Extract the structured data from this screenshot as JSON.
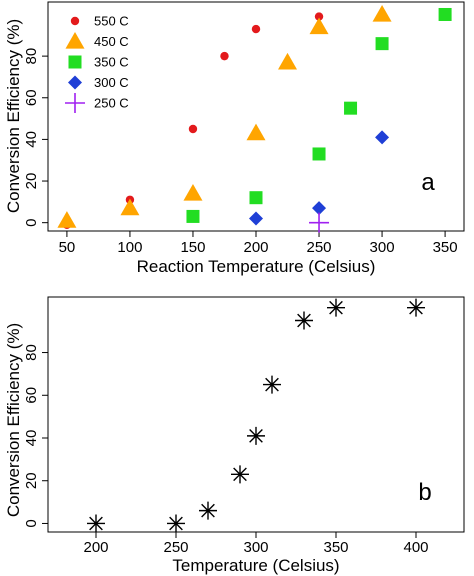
{
  "chart_data": [
    {
      "type": "scatter",
      "panel_label": "a",
      "xlabel": "Reaction Temperature (Celsius)",
      "ylabel": "Conversion Efficiency (%)",
      "xlim": [
        35,
        365
      ],
      "ylim": [
        -4,
        106
      ],
      "xticks": [
        50,
        100,
        150,
        200,
        250,
        300,
        350
      ],
      "yticks": [
        0,
        20,
        40,
        60,
        80
      ],
      "legend_position": "top-left",
      "series": [
        {
          "name": "550 C",
          "marker": "circle",
          "color": "#e31a1c",
          "x": [
            50,
            100,
            150,
            175,
            200,
            250
          ],
          "y": [
            -1,
            11,
            45,
            80,
            93,
            99
          ]
        },
        {
          "name": "450 C",
          "marker": "triangle",
          "color": "#ffa500",
          "x": [
            50,
            100,
            150,
            200,
            225,
            250,
            300
          ],
          "y": [
            1,
            7,
            14,
            43,
            77,
            94,
            100
          ]
        },
        {
          "name": "350 C",
          "marker": "square",
          "color": "#22dd22",
          "x": [
            150,
            200,
            250,
            275,
            300,
            350
          ],
          "y": [
            3,
            12,
            33,
            55,
            86,
            100
          ]
        },
        {
          "name": "300 C",
          "marker": "diamond",
          "color": "#1f3fd6",
          "x": [
            200,
            250,
            300
          ],
          "y": [
            2,
            7,
            41
          ]
        },
        {
          "name": "250 C",
          "marker": "plus",
          "color": "#a020f0",
          "x": [
            250
          ],
          "y": [
            0
          ]
        }
      ]
    },
    {
      "type": "scatter",
      "panel_label": "b",
      "xlabel": "Temperature (Celsius)",
      "ylabel": "Conversion Efficiency (%)",
      "xlim": [
        170,
        430
      ],
      "ylim": [
        -4,
        106
      ],
      "xticks": [
        200,
        250,
        300,
        350,
        400
      ],
      "yticks": [
        0,
        20,
        40,
        60,
        80
      ],
      "series": [
        {
          "marker": "asterisk",
          "color": "#000000",
          "x": [
            200,
            250,
            270,
            290,
            300,
            310,
            330,
            350,
            400
          ],
          "y": [
            0,
            0,
            6,
            23,
            41,
            65,
            95,
            101,
            101
          ]
        }
      ]
    }
  ]
}
